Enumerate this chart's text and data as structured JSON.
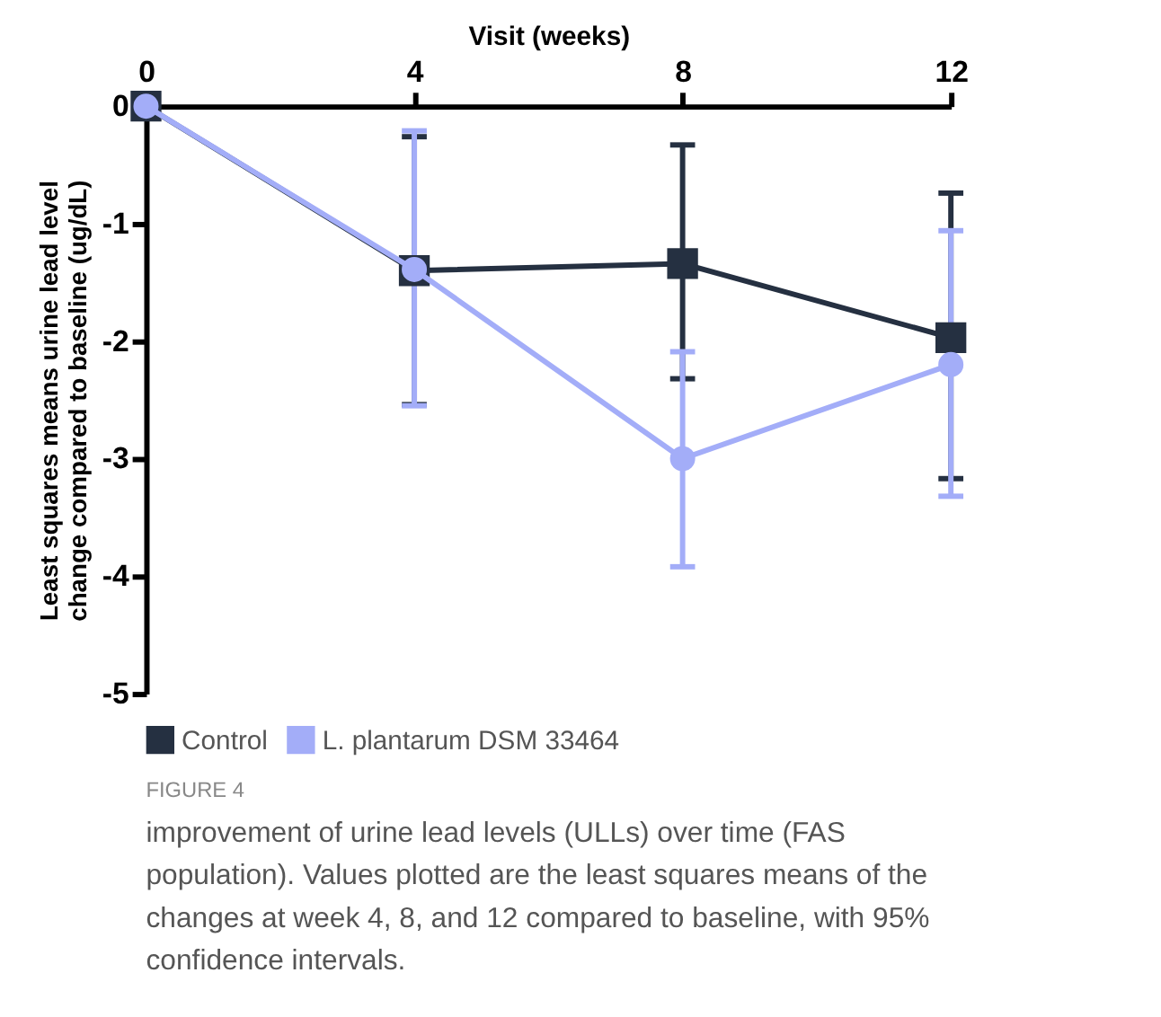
{
  "chart_data": {
    "type": "line",
    "xlabel": "Visit (weeks)",
    "ylabel": "Least squares means urine lead level change compared to baseline (ug/dL)",
    "x": [
      0,
      4,
      8,
      12
    ],
    "xlim": [
      0,
      12
    ],
    "xticks": [
      0,
      4,
      8,
      12
    ],
    "ylim": [
      -5,
      0
    ],
    "yticks": [
      0,
      -1,
      -2,
      -3,
      -4,
      -5
    ],
    "grid": false,
    "legend": "bottom",
    "line_style": "solid",
    "series": [
      {
        "name": "Control",
        "color": "#253041",
        "marker": "square",
        "values": [
          0,
          -1.4,
          -1.34,
          -1.97
        ],
        "errors": [
          null,
          [
            -2.54,
            -0.26
          ],
          [
            -2.32,
            -0.33
          ],
          [
            -3.17,
            -0.74
          ]
        ]
      },
      {
        "name": "L. plantarum DSM 33464",
        "color": "#a3adf8",
        "marker": "circle",
        "values": [
          0,
          -1.39,
          -3.0,
          -2.2
        ],
        "errors": [
          null,
          [
            -2.55,
            -0.21
          ],
          [
            -3.92,
            -2.09
          ],
          [
            -3.32,
            -1.06
          ]
        ]
      }
    ],
    "annotations": [
      "FIGURE 4",
      "improvement of urine lead levels (ULLs) over time (FAS population). Values plotted are the least squares means of the changes at week 4, 8, and 12 compared to baseline, with 95% confidence intervals."
    ]
  }
}
